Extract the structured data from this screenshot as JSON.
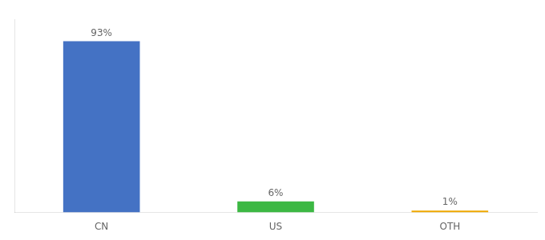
{
  "chart_data": {
    "type": "bar",
    "categories": [
      "CN",
      "US",
      "OTH"
    ],
    "values": [
      93,
      6,
      1
    ],
    "value_labels": [
      "93%",
      "6%",
      "1%"
    ],
    "colors": [
      "#4472c4",
      "#3cb843",
      "#f0a800"
    ],
    "ylim": [
      0,
      105
    ],
    "yticks": [],
    "grid": false,
    "data_labels": true,
    "tick_labels": "x"
  }
}
